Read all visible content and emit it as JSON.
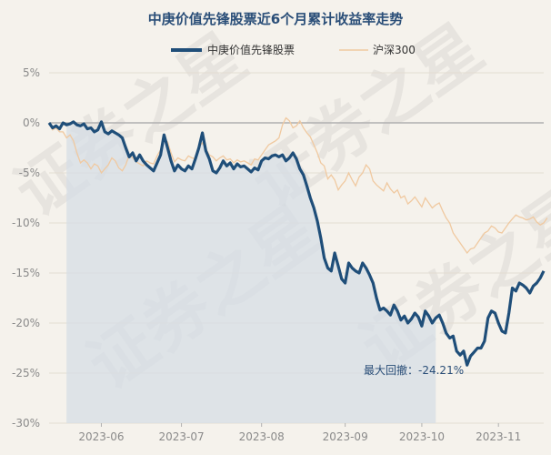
{
  "chart_data": {
    "type": "line",
    "title": "中庚价值先锋股票近6个月累计收益率走势",
    "xlabel": "",
    "ylabel": "",
    "ylim": [
      -30,
      5
    ],
    "yticks": [
      "5%",
      "0%",
      "-5%",
      "-10%",
      "-15%",
      "-20%",
      "-25%",
      "-30%"
    ],
    "ytick_values": [
      5,
      0,
      -5,
      -10,
      -15,
      -20,
      -25,
      -30
    ],
    "xticks": [
      "2023-06",
      "2023-07",
      "2023-08",
      "2023-09",
      "2023-10",
      "2023-11"
    ],
    "grid": "horizontal",
    "legend_position": "top-center",
    "zero_line": true,
    "watermark": "证券之星",
    "annotation": {
      "label": "最大回撤：",
      "value": "-24.21%"
    },
    "drawdown": {
      "start_index": 5,
      "end_index": 111,
      "trough_value": -24.2
    },
    "colors": {
      "fund": "#1f4e79",
      "index": "#f0c9a0",
      "shade": "#d5dee6",
      "zero": "#b0b0b0"
    },
    "series": [
      {
        "name": "中庚价值先锋股票",
        "values": [
          0,
          -0.5,
          -0.3,
          -0.6,
          0,
          -0.2,
          -0.1,
          0.1,
          -0.2,
          -0.3,
          -0.1,
          -0.6,
          -0.5,
          -0.9,
          -0.7,
          0.1,
          -0.9,
          -1.1,
          -0.8,
          -1.0,
          -1.2,
          -1.5,
          -2.5,
          -3.4,
          -3.0,
          -3.8,
          -3.2,
          -3.8,
          -4.2,
          -4.5,
          -4.8,
          -4.0,
          -3.2,
          -1.2,
          -2.5,
          -3.8,
          -4.8,
          -4.2,
          -4.6,
          -4.8,
          -4.3,
          -4.6,
          -3.6,
          -2.5,
          -1.0,
          -2.8,
          -3.6,
          -4.8,
          -5.0,
          -4.5,
          -3.8,
          -4.3,
          -4.0,
          -4.6,
          -4.1,
          -4.4,
          -4.3,
          -4.6,
          -4.9,
          -4.5,
          -4.7,
          -3.8,
          -3.5,
          -3.6,
          -3.3,
          -3.2,
          -3.4,
          -3.2,
          -3.8,
          -3.5,
          -3.0,
          -3.6,
          -4.6,
          -5.2,
          -6.3,
          -7.5,
          -8.5,
          -9.8,
          -11.5,
          -13.5,
          -14.5,
          -14.8,
          -13.0,
          -14.3,
          -15.6,
          -16.0,
          -14.0,
          -14.5,
          -14.8,
          -15.0,
          -14.0,
          -14.5,
          -15.2,
          -16.0,
          -17.5,
          -18.7,
          -18.5,
          -18.8,
          -19.2,
          -18.2,
          -18.8,
          -19.7,
          -19.3,
          -20.0,
          -19.6,
          -19.0,
          -19.4,
          -20.3,
          -18.8,
          -19.3,
          -20.0,
          -19.5,
          -19.2,
          -20.0,
          -21.0,
          -21.5,
          -21.3,
          -22.8,
          -23.2,
          -22.8,
          -24.2,
          -23.3,
          -22.9,
          -22.5,
          -22.5,
          -21.8,
          -19.5,
          -18.8,
          -19.0,
          -20.0,
          -20.8,
          -21.0,
          -19.0,
          -16.5,
          -16.8,
          -16.0,
          -16.2,
          -16.5,
          -17.0,
          -16.3,
          -16.0,
          -15.5,
          -14.8
        ]
      },
      {
        "name": "沪深300",
        "values": [
          0,
          -0.7,
          -0.5,
          -0.9,
          -0.9,
          -1.5,
          -1.2,
          -1.8,
          -3.0,
          -4.0,
          -3.7,
          -4.0,
          -4.6,
          -4.1,
          -4.3,
          -5.0,
          -4.6,
          -4.2,
          -3.5,
          -3.8,
          -4.5,
          -4.8,
          -4.2,
          -3.2,
          -3.5,
          -3.9,
          -4.1,
          -4.3,
          -3.8,
          -4.0,
          -4.1,
          -3.3,
          -2.7,
          -1.6,
          -1.9,
          -3.0,
          -3.9,
          -3.5,
          -3.7,
          -3.8,
          -3.3,
          -3.5,
          -3.6,
          -2.4,
          -2.0,
          -2.6,
          -3.2,
          -3.4,
          -3.8,
          -3.5,
          -3.3,
          -3.7,
          -3.6,
          -4.0,
          -3.7,
          -3.9,
          -3.8,
          -4.0,
          -4.2,
          -3.6,
          -3.7,
          -3.2,
          -2.7,
          -2.2,
          -2.0,
          -1.8,
          -1.5,
          -0.2,
          0.5,
          0.2,
          -0.5,
          -0.3,
          0.2,
          -0.5,
          -1.0,
          -1.4,
          -2.2,
          -3.0,
          -4.0,
          -4.3,
          -5.6,
          -5.2,
          -5.7,
          -6.7,
          -6.2,
          -5.8,
          -5.0,
          -5.7,
          -6.3,
          -5.4,
          -5.0,
          -4.2,
          -4.6,
          -5.8,
          -6.2,
          -6.5,
          -6.8,
          -6.0,
          -6.6,
          -7.0,
          -6.7,
          -7.5,
          -7.3,
          -8.1,
          -7.8,
          -7.4,
          -7.9,
          -8.4,
          -7.5,
          -8.0,
          -8.5,
          -8.2,
          -8.0,
          -8.8,
          -9.5,
          -10.0,
          -11.0,
          -11.5,
          -12.0,
          -12.5,
          -13.0,
          -12.6,
          -12.5,
          -12.0,
          -11.5,
          -11.0,
          -10.8,
          -10.3,
          -10.5,
          -10.9,
          -11.0,
          -10.5,
          -10.0,
          -9.6,
          -9.2,
          -9.4,
          -9.5,
          -9.7,
          -9.6,
          -9.4,
          -9.9,
          -10.2,
          -10.0,
          -9.5
        ]
      }
    ]
  }
}
